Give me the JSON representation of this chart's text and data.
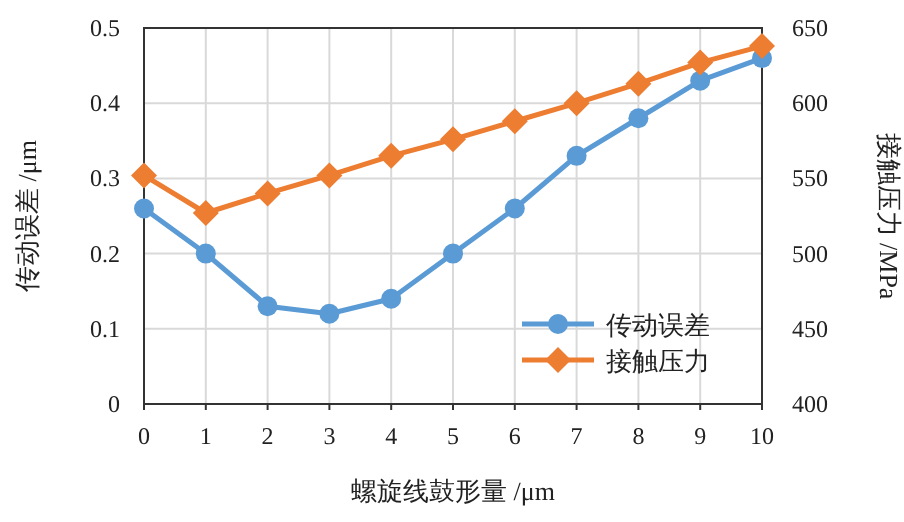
{
  "chart_data": {
    "type": "line",
    "xlabel": "螺旋线鼓形量 /μm",
    "ylabel": "传动误差 /μm",
    "y2label": "接触压力 /MPa",
    "x": [
      0,
      1,
      2,
      3,
      4,
      5,
      6,
      7,
      8,
      9,
      10
    ],
    "xlim": [
      0,
      10
    ],
    "xticks": [
      0,
      1,
      2,
      3,
      4,
      5,
      6,
      7,
      8,
      9,
      10
    ],
    "ylim": [
      0,
      0.5
    ],
    "yticks": [
      0,
      0.1,
      0.2,
      0.3,
      0.4,
      0.5
    ],
    "y2lim": [
      400,
      650
    ],
    "y2ticks": [
      400,
      450,
      500,
      550,
      600,
      650
    ],
    "grid": true,
    "legend": "bottom right",
    "series": [
      {
        "name": "传动误差",
        "color": "#5b9bd5",
        "marker": "circle",
        "values": [
          0.26,
          0.2,
          0.13,
          0.12,
          0.14,
          0.2,
          0.26,
          0.33,
          0.38,
          0.43,
          0.46
        ]
      },
      {
        "name": "接触压力",
        "color": "#ed7d31",
        "marker": "diamond",
        "axis": "y2",
        "values": [
          552,
          527,
          540,
          552,
          565,
          576,
          588,
          600,
          613,
          627,
          638
        ]
      }
    ]
  }
}
